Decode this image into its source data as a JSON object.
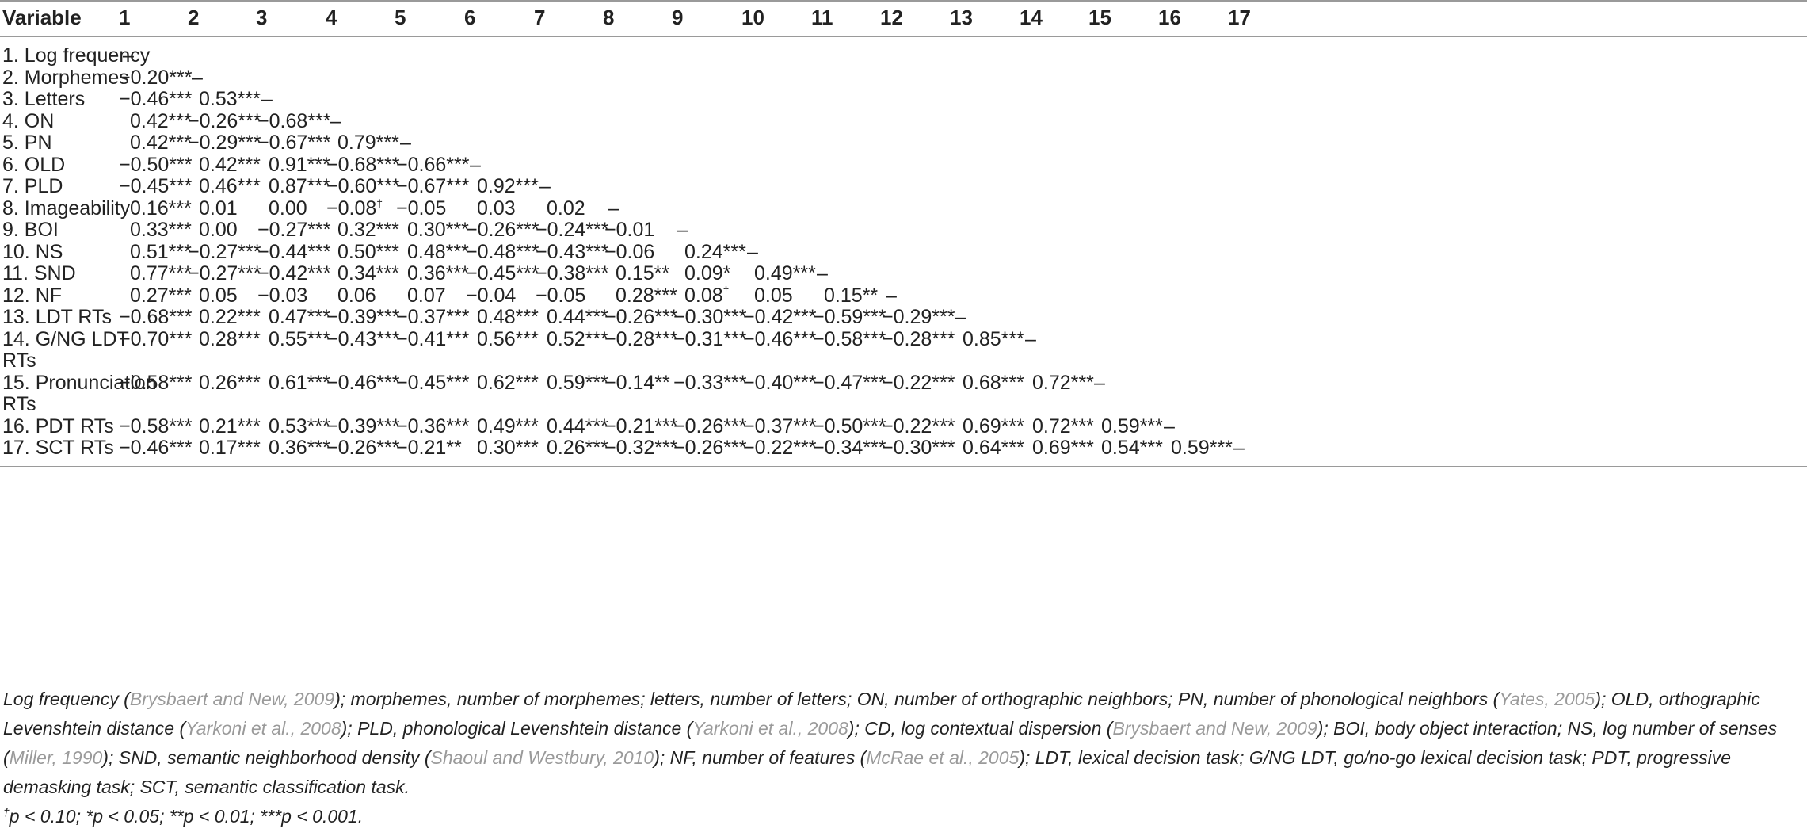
{
  "header": {
    "variable": "Variable",
    "columns": [
      "1",
      "2",
      "3",
      "4",
      "5",
      "6",
      "7",
      "8",
      "9",
      "10",
      "11",
      "12",
      "13",
      "14",
      "15",
      "16",
      "17"
    ]
  },
  "rows": [
    {
      "label": "1. Log frequency",
      "values": [
        "–"
      ]
    },
    {
      "label": "2. Morphemes",
      "values": [
        "−0.20***",
        "–"
      ]
    },
    {
      "label": "3. Letters",
      "values": [
        "−0.46***",
        "0.53***",
        "–"
      ]
    },
    {
      "label": "4. ON",
      "values": [
        "0.42***",
        "−0.26***",
        "−0.68***",
        "–"
      ]
    },
    {
      "label": "5. PN",
      "values": [
        "0.42***",
        "−0.29***",
        "−0.67***",
        "0.79***",
        "–"
      ]
    },
    {
      "label": "6. OLD",
      "values": [
        "−0.50***",
        "0.42***",
        "0.91***",
        "−0.68***",
        "−0.66***",
        "–"
      ]
    },
    {
      "label": "7. PLD",
      "values": [
        "−0.45***",
        "0.46***",
        "0.87***",
        "−0.60***",
        "−0.67***",
        "0.92***",
        "–"
      ]
    },
    {
      "label": "8. Imageability",
      "values": [
        "0.16***",
        "0.01",
        "0.00",
        "−0.08†",
        "−0.05",
        "0.03",
        "0.02",
        "–"
      ]
    },
    {
      "label": "9. BOI",
      "values": [
        "0.33***",
        "0.00",
        "−0.27***",
        "0.32***",
        "0.30***",
        "−0.26***",
        "−0.24***",
        "−0.01",
        "–"
      ]
    },
    {
      "label": "10. NS",
      "values": [
        "0.51***",
        "−0.27***",
        "−0.44***",
        "0.50***",
        "0.48***",
        "−0.48***",
        "−0.43***",
        "−0.06",
        "0.24***",
        "–"
      ]
    },
    {
      "label": "11. SND",
      "values": [
        "0.77***",
        "−0.27***",
        "−0.42***",
        "0.34***",
        "0.36***",
        "−0.45***",
        "−0.38***",
        "0.15**",
        "0.09*",
        "0.49***",
        "–"
      ]
    },
    {
      "label": "12. NF",
      "values": [
        "0.27***",
        "0.05",
        "−0.03",
        "0.06",
        "0.07",
        "−0.04",
        "−0.05",
        "0.28***",
        "0.08†",
        "0.05",
        "0.15**",
        "–"
      ]
    },
    {
      "label": "13. LDT RTs",
      "values": [
        "−0.68***",
        "0.22***",
        "0.47***",
        "−0.39***",
        "−0.37***",
        "0.48***",
        "0.44***",
        "−0.26***",
        "−0.30***",
        "−0.42***",
        "−0.59***",
        "−0.29***",
        "–"
      ]
    },
    {
      "label": "14. G/NG LDT",
      "label2": "RTs",
      "values": [
        "−0.70***",
        "0.28***",
        "0.55***",
        "−0.43***",
        "−0.41***",
        "0.56***",
        "0.52***",
        "−0.28***",
        "−0.31***",
        "−0.46***",
        "−0.58***",
        "−0.28***",
        "0.85***",
        "–"
      ]
    },
    {
      "label": "15. Pronunciation",
      "label2": "RTs",
      "values": [
        "−0.58***",
        "0.26***",
        "0.61***",
        "−0.46***",
        "−0.45***",
        "0.62***",
        "0.59***",
        "−0.14**",
        "−0.33***",
        "−0.40***",
        "−0.47***",
        "−0.22***",
        "0.68***",
        "0.72***",
        "–"
      ]
    },
    {
      "label": "16. PDT RTs",
      "values": [
        "−0.58***",
        "0.21***",
        "0.53***",
        "−0.39***",
        "−0.36***",
        "0.49***",
        "0.44***",
        "−0.21***",
        "−0.26***",
        "−0.37***",
        "−0.50***",
        "−0.22***",
        "0.69***",
        "0.72***",
        "0.59***",
        "–"
      ]
    },
    {
      "label": "17. SCT RTs",
      "values": [
        "−0.46***",
        "0.17***",
        "0.36***",
        "−0.26***",
        "−0.21**",
        "0.30***",
        "0.26***",
        "−0.32***",
        "−0.26***",
        "−0.22***",
        "−0.34***",
        "−0.30***",
        "0.64***",
        "0.69***",
        "0.54***",
        "0.59***",
        "–"
      ]
    }
  ],
  "notes": {
    "p1": [
      {
        "t": "Log frequency ("
      },
      {
        "t": "Brysbaert and New, 2009",
        "c": 1
      },
      {
        "t": "); morphemes, number of morphemes; letters, number of letters; ON, number of orthographic neighbors; PN, number of phonological neighbors ("
      },
      {
        "t": "Yates, 2005",
        "c": 1
      },
      {
        "t": "); OLD, orthographic Levenshtein distance ("
      },
      {
        "t": "Yarkoni et al., 2008",
        "c": 1
      },
      {
        "t": "); PLD, phonological Levenshtein distance ("
      },
      {
        "t": "Yarkoni et al., 2008",
        "c": 1
      },
      {
        "t": "); CD, log contextual dispersion ("
      },
      {
        "t": "Brysbaert and New, 2009",
        "c": 1
      },
      {
        "t": "); BOI, body object interaction; NS, log number of senses ("
      },
      {
        "t": "Miller, 1990",
        "c": 1
      },
      {
        "t": "); SND, semantic neighborhood density ("
      },
      {
        "t": "Shaoul and Westbury, 2010",
        "c": 1
      },
      {
        "t": "); NF, number of features ("
      },
      {
        "t": "McRae et al., 2005",
        "c": 1
      },
      {
        "t": "); LDT, lexical decision task; G/NG LDT, go/no-go lexical decision task; PDT, progressive demasking task; SCT, semantic classification task."
      }
    ],
    "p2_mark": "†",
    "p2": "p < 0.10; *p < 0.05; **p < 0.01; ***p < 0.001."
  }
}
